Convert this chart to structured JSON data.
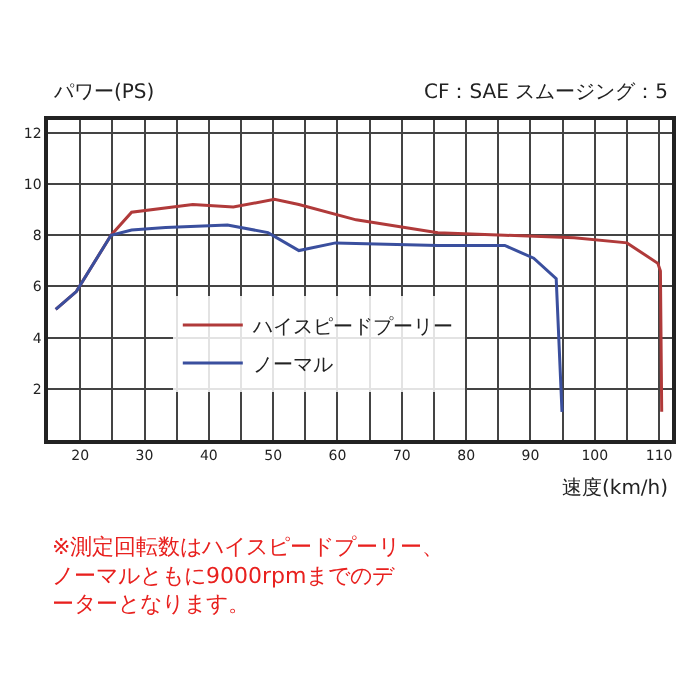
{
  "chart_data": {
    "type": "line",
    "ylabel": "パワー(PS)",
    "xlabel": "速度(km/h)",
    "annotations": [
      "CF：SAE スムージング：5",
      "※測定回転数はハイスピードプーリー、ノーマルともに9000rpmまでのデーターとなります。"
    ],
    "series": [
      {
        "name": "ハイスピードプーリー",
        "color": "#b03a3a",
        "x": [
          16.2,
          19.4,
          24.8,
          28,
          37.5,
          43.8,
          50.2,
          54,
          62.9,
          75.6,
          86,
          96.8,
          105,
          109.8,
          110.2,
          110.4
        ],
        "values": [
          5.1,
          5.8,
          8.0,
          8.9,
          9.2,
          9.1,
          9.4,
          9.2,
          8.6,
          8.1,
          8.0,
          7.9,
          7.7,
          6.9,
          6.6,
          1.1
        ]
      },
      {
        "name": "ノーマル",
        "color": "#3a4f9e",
        "x": [
          16.2,
          19.4,
          24.8,
          28,
          33.3,
          42.9,
          49.2,
          54,
          59.7,
          75.6,
          86,
          90.5,
          94,
          94.9
        ],
        "values": [
          5.1,
          5.8,
          8.0,
          8.2,
          8.3,
          8.4,
          8.1,
          7.4,
          7.7,
          7.6,
          7.6,
          7.1,
          6.3,
          1.1
        ]
      }
    ],
    "xlim": [
      15,
      112
    ],
    "xticks": [
      20,
      {
        "value": 25,
        "label": null
      },
      30,
      {
        "value": 35,
        "label": null
      },
      40,
      {
        "value": 45,
        "label": null
      },
      50,
      {
        "value": 55,
        "label": null
      },
      60,
      {
        "value": 65,
        "label": null
      },
      70,
      {
        "value": 75,
        "label": null
      },
      80,
      {
        "value": 85,
        "label": null
      },
      90,
      {
        "value": 95,
        "label": null
      },
      100,
      {
        "value": 105,
        "label": null
      },
      110
    ],
    "ylim": [
      0,
      12.5
    ],
    "yticks": [
      2,
      4,
      6,
      8,
      10,
      12
    ],
    "grid": true,
    "legend": "left",
    "marker": "none",
    "line_style": "solid"
  }
}
